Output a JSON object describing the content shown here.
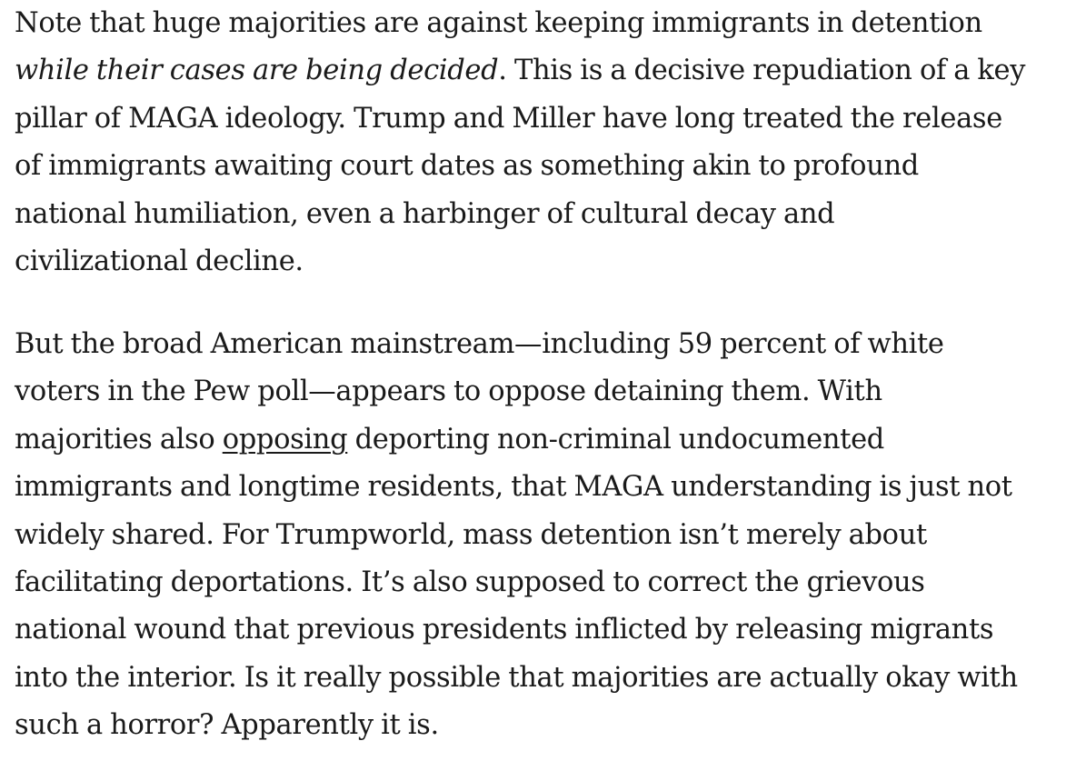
{
  "article": {
    "paragraph_1": {
      "line_1": "Note that huge majorities are against keeping immigrants in detention",
      "line_2_italic": "while their cases are being decided",
      "line_2_rest": ". This is a decisive repudiation of a key",
      "line_3": "pillar of MAGA ideology. Trump and Miller have long treated the release",
      "line_4": "of immigrants awaiting court dates as something akin to profound",
      "line_5": "national humiliation, even a harbinger of cultural decay and",
      "line_6": "civilizational decline."
    },
    "paragraph_2": {
      "line_1": "But the broad American mainstream—including 59 percent of white",
      "line_2": "voters in the Pew poll—appears to oppose detaining them. With",
      "line_3_before_link": "majorities also ",
      "line_3_link": "opposing",
      "line_3_after_link": " deporting non-criminal undocumented",
      "line_4": "immigrants and longtime residents, that MAGA understanding is just not",
      "line_5": "widely shared. For Trumpworld, mass detention isn’t merely about",
      "line_6": "facilitating deportations. It’s also supposed to correct the grievous",
      "line_7": "national wound that previous presidents inflicted by releasing migrants",
      "line_8": "into the interior. Is it really possible that majorities are actually okay with",
      "line_9": "such a horror? Apparently it is."
    }
  },
  "colors": {
    "text": "#1a1a1a",
    "background": "#ffffff"
  }
}
